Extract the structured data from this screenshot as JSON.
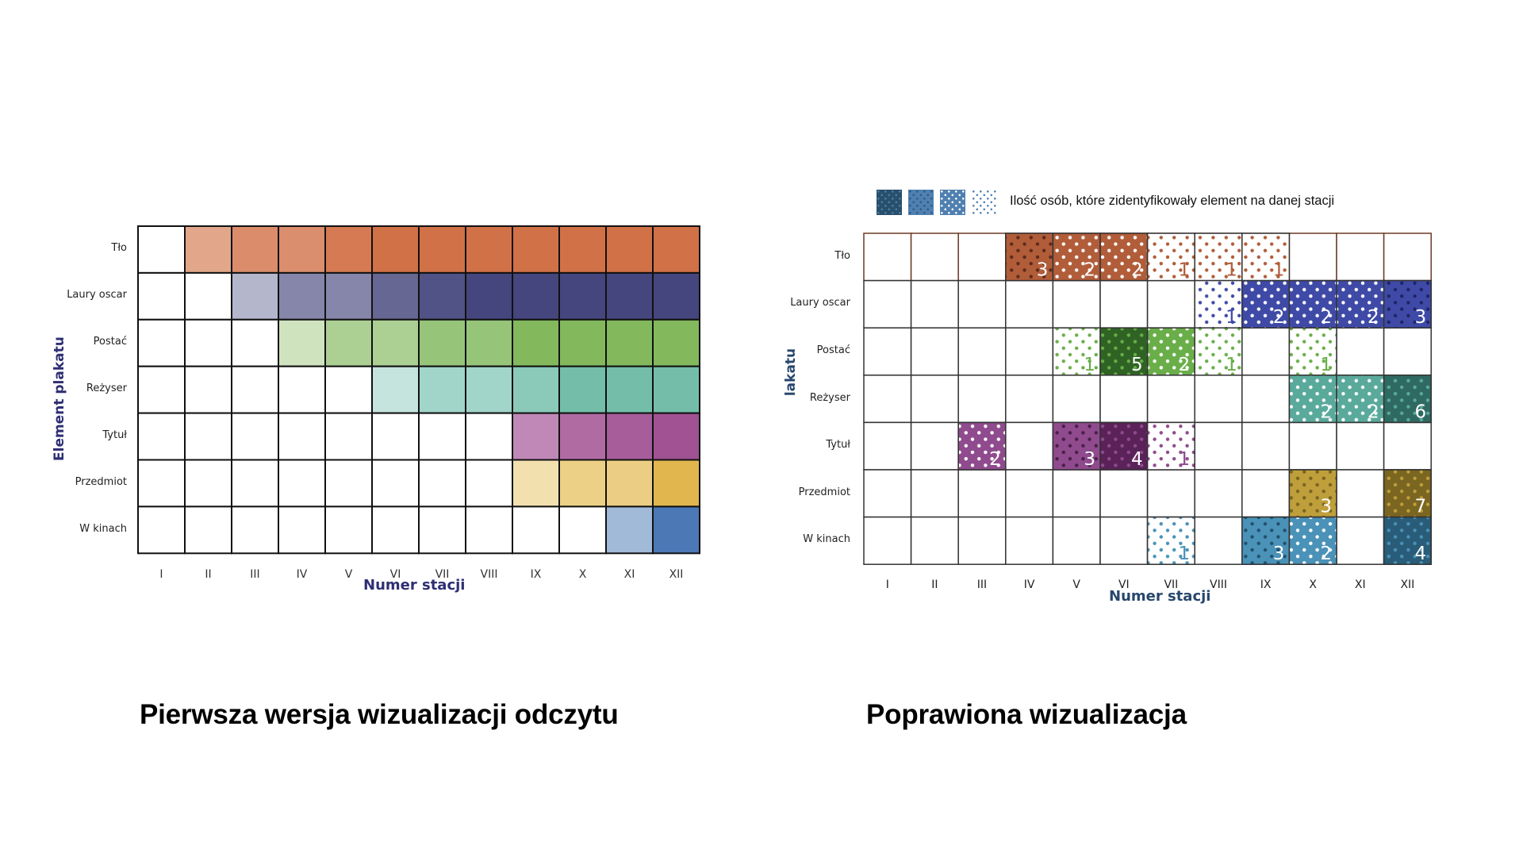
{
  "titles": {
    "left": "Pierwsza wersja wizualizacji odczytu",
    "right": "Poprawiona wizualizacja"
  },
  "chart_data": [
    {
      "type": "heatmap",
      "title": "Pierwsza wersja wizualizacji odczytu",
      "xlabel": "Numer stacji",
      "ylabel": "Element plakatu",
      "label_colors": {
        "xlabel": "#2e2f73",
        "ylabel": "#2e2f73"
      },
      "x": [
        "I",
        "II",
        "III",
        "IV",
        "V",
        "VI",
        "VII",
        "VIII",
        "IX",
        "X",
        "XI",
        "XII"
      ],
      "y": [
        "Tło",
        "Laury oscar",
        "Postać",
        "Reżyser",
        "Tytuł",
        "Przedmiot",
        "W kinach"
      ],
      "grid": true,
      "note": "Cell colors encode cumulative identification intensity per element; white = not identified",
      "cells": [
        [
          "#ffffff",
          "#e2a78a",
          "#da8c6b",
          "#da8e6e",
          "#d57a52",
          "#d17147",
          "#d17147",
          "#d17147",
          "#d17147",
          "#d17147",
          "#d17147",
          "#d17147"
        ],
        [
          "#ffffff",
          "#ffffff",
          "#b4b6cc",
          "#8586aa",
          "#8586aa",
          "#666792",
          "#515285",
          "#45467e",
          "#45467e",
          "#45467e",
          "#45467e",
          "#45467e"
        ],
        [
          "#ffffff",
          "#ffffff",
          "#ffffff",
          "#cfe3bf",
          "#acd093",
          "#acd093",
          "#96c57a",
          "#96c57a",
          "#83b85d",
          "#83b85d",
          "#83b85d",
          "#83b85d"
        ],
        [
          "#ffffff",
          "#ffffff",
          "#ffffff",
          "#ffffff",
          "#ffffff",
          "#c6e4de",
          "#a2d5c9",
          "#a2d5c9",
          "#8bc9b9",
          "#74bea9",
          "#74bea9",
          "#74bea9"
        ],
        [
          "#ffffff",
          "#ffffff",
          "#ffffff",
          "#ffffff",
          "#ffffff",
          "#ffffff",
          "#ffffff",
          "#ffffff",
          "#bf88b7",
          "#b06ba3",
          "#a65d9a",
          "#a05292"
        ],
        [
          "#ffffff",
          "#ffffff",
          "#ffffff",
          "#ffffff",
          "#ffffff",
          "#ffffff",
          "#ffffff",
          "#ffffff",
          "#f2e0ae",
          "#ecd085",
          "#ebce83",
          "#e2b64f"
        ],
        [
          "#ffffff",
          "#ffffff",
          "#ffffff",
          "#ffffff",
          "#ffffff",
          "#ffffff",
          "#ffffff",
          "#ffffff",
          "#ffffff",
          "#ffffff",
          "#a0bad8",
          "#4c78b6"
        ]
      ]
    },
    {
      "type": "heatmap",
      "title": "Poprawiona wizualizacja",
      "xlabel": "Numer stacji",
      "ylabel": "lakatu",
      "label_colors": {
        "xlabel": "#28476c",
        "ylabel": "#28476c"
      },
      "legend": {
        "text": "Ilość osób, które zidentyfikowały element na danej stacji",
        "position": "top-left",
        "swatches": [
          {
            "style": "dark",
            "bg": "#284f6c",
            "dot": "#4a7ea6"
          },
          {
            "style": "mid-dark",
            "bg": "#4f80b0",
            "dot": "#2c5a83"
          },
          {
            "style": "mid",
            "bg": "#4f80b0",
            "dot": "#ffffff"
          },
          {
            "style": "light",
            "bg": "#ffffff",
            "dot": "#4f80b0"
          }
        ]
      },
      "x": [
        "I",
        "II",
        "III",
        "IV",
        "V",
        "VI",
        "VII",
        "VIII",
        "IX",
        "X",
        "XI",
        "XII"
      ],
      "y": [
        "Tło",
        "Laury oscar",
        "Postać",
        "Reżyser",
        "Tytuł",
        "Przedmiot",
        "W kinach"
      ],
      "grid": true,
      "row_colors": {
        "Tło": {
          "base": "#b15d3a",
          "dark_dot": "#5d2b1a",
          "dark_bg": "#b15d3a"
        },
        "Laury oscar": {
          "base": "#3f4aa7",
          "dark_dot": "#1f2466",
          "dark_bg": "#3f4aa7"
        },
        "Postać": {
          "base": "#6aae4a",
          "dark_dot": "#6aae4a",
          "dark_bg": "#2f6324"
        },
        "Reżyser": {
          "base": "#5aaa9c",
          "dark_dot": "#5aaa9c",
          "dark_bg": "#2f6a62"
        },
        "Tytuł": {
          "base": "#8f4b8e",
          "dark_dot": "#4a1e49",
          "dark_bg": "#8f4b8e",
          "darker_bg": "#5a2258",
          "darker_dot": "#8f4b8e"
        },
        "Przedmiot": {
          "base": "#bf9f3b",
          "dark_dot": "#7a6420",
          "dark_bg": "#bf9f3b",
          "darker_bg": "#7a6521",
          "darker_dot": "#bf9f3b"
        },
        "W kinach": {
          "base": "#4a92b8",
          "dark_dot": "#22506e",
          "dark_bg": "#4a92b8",
          "darker_bg": "#295c78",
          "darker_dot": "#4a92b8"
        }
      },
      "values": [
        {
          "row": "Tło",
          "col": "IV",
          "value": 3,
          "style": "dark"
        },
        {
          "row": "Tło",
          "col": "V",
          "value": 2,
          "style": "mid"
        },
        {
          "row": "Tło",
          "col": "VI",
          "value": 2,
          "style": "mid"
        },
        {
          "row": "Tło",
          "col": "VII",
          "value": 1,
          "style": "light"
        },
        {
          "row": "Tło",
          "col": "VIII",
          "value": 1,
          "style": "light"
        },
        {
          "row": "Tło",
          "col": "IX",
          "value": 1,
          "style": "light"
        },
        {
          "row": "Laury oscar",
          "col": "VIII",
          "value": 1,
          "style": "light"
        },
        {
          "row": "Laury oscar",
          "col": "IX",
          "value": 2,
          "style": "mid"
        },
        {
          "row": "Laury oscar",
          "col": "X",
          "value": 2,
          "style": "mid"
        },
        {
          "row": "Laury oscar",
          "col": "XI",
          "value": 2,
          "style": "mid"
        },
        {
          "row": "Laury oscar",
          "col": "XII",
          "value": 3,
          "style": "dark"
        },
        {
          "row": "Postać",
          "col": "V",
          "value": 1,
          "style": "light"
        },
        {
          "row": "Postać",
          "col": "VI",
          "value": 5,
          "style": "darker"
        },
        {
          "row": "Postać",
          "col": "VII",
          "value": 2,
          "style": "mid"
        },
        {
          "row": "Postać",
          "col": "VIII",
          "value": 1,
          "style": "light"
        },
        {
          "row": "Postać",
          "col": "X",
          "value": 1,
          "style": "light"
        },
        {
          "row": "Reżyser",
          "col": "X",
          "value": 2,
          "style": "mid"
        },
        {
          "row": "Reżyser",
          "col": "XI",
          "value": 2,
          "style": "mid"
        },
        {
          "row": "Reżyser",
          "col": "XII",
          "value": 6,
          "style": "darker"
        },
        {
          "row": "Tytuł",
          "col": "III",
          "value": 2,
          "style": "mid"
        },
        {
          "row": "Tytuł",
          "col": "V",
          "value": 3,
          "style": "dark"
        },
        {
          "row": "Tytuł",
          "col": "VI",
          "value": 4,
          "style": "darker"
        },
        {
          "row": "Tytuł",
          "col": "VII",
          "value": 1,
          "style": "light"
        },
        {
          "row": "Przedmiot",
          "col": "X",
          "value": 3,
          "style": "dark"
        },
        {
          "row": "Przedmiot",
          "col": "XII",
          "value": 7,
          "style": "darker"
        },
        {
          "row": "W kinach",
          "col": "VII",
          "value": 1,
          "style": "light"
        },
        {
          "row": "W kinach",
          "col": "IX",
          "value": 3,
          "style": "dark"
        },
        {
          "row": "W kinach",
          "col": "X",
          "value": 2,
          "style": "mid"
        },
        {
          "row": "W kinach",
          "col": "XII",
          "value": 4,
          "style": "darker"
        }
      ]
    }
  ]
}
